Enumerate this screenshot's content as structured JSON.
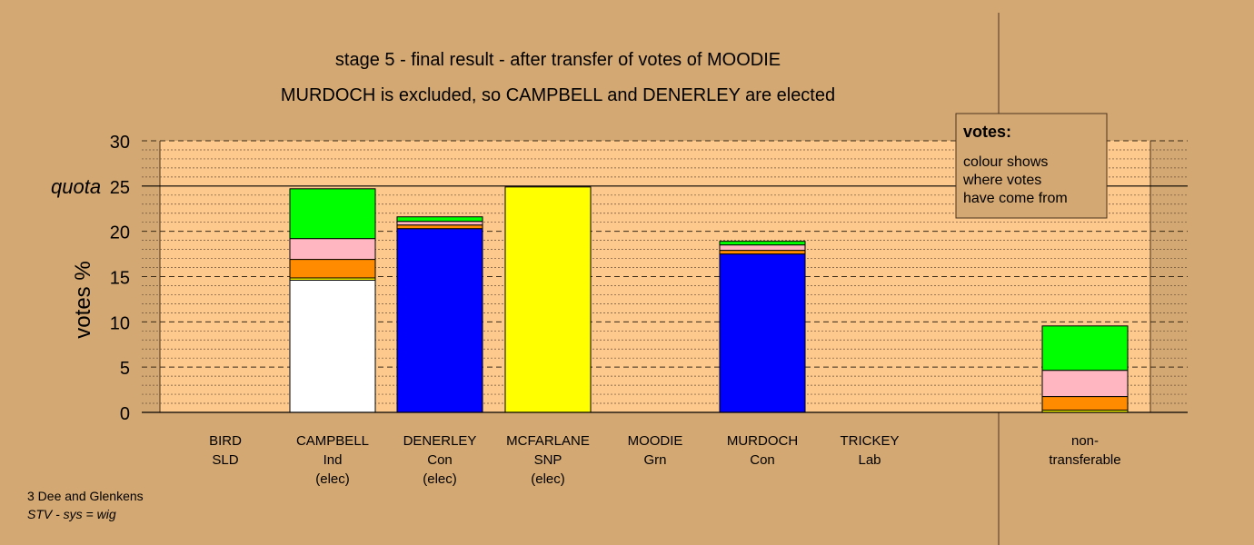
{
  "chart_data": {
    "type": "bar",
    "stacked": true,
    "title": "stage 5 - final result - after transfer of votes of MOODIE",
    "subtitle": "MURDOCH is excluded, so CAMPBELL and DENERLEY are elected",
    "ylabel": "votes %",
    "ylim": [
      0,
      30
    ],
    "yticks": [
      0,
      5,
      10,
      15,
      20,
      25,
      30
    ],
    "quota": {
      "label": "quota",
      "value": 25
    },
    "grid": true,
    "categories": [
      {
        "name": "BIRD",
        "party": "SLD",
        "status": ""
      },
      {
        "name": "CAMPBELL",
        "party": "Ind",
        "status": "(elec)"
      },
      {
        "name": "DENERLEY",
        "party": "Con",
        "status": "(elec)"
      },
      {
        "name": "MCFARLANE",
        "party": "SNP",
        "status": "(elec)"
      },
      {
        "name": "MOODIE",
        "party": "Grn",
        "status": ""
      },
      {
        "name": "MURDOCH",
        "party": "Con",
        "status": ""
      },
      {
        "name": "TRICKEY",
        "party": "Lab",
        "status": ""
      },
      {
        "name": "non-",
        "party": "transferable",
        "status": ""
      }
    ],
    "series": [
      {
        "color": "#ffffff",
        "values": [
          0,
          14.6,
          0,
          0,
          0,
          0,
          0,
          0
        ]
      },
      {
        "color": "#0000ff",
        "values": [
          0,
          0,
          20.3,
          0,
          0,
          17.5,
          0,
          0
        ]
      },
      {
        "color": "#ffff00",
        "values": [
          0,
          0.25,
          0,
          24.9,
          0,
          0,
          0,
          0.25
        ]
      },
      {
        "color": "#ff8c00",
        "values": [
          0,
          2.05,
          0.4,
          0,
          0,
          0.4,
          0,
          1.5
        ]
      },
      {
        "color": "#ffb6c1",
        "values": [
          0,
          2.3,
          0.4,
          0,
          0,
          0.6,
          0,
          2.9
        ]
      },
      {
        "color": "#00ff00",
        "values": [
          0,
          5.5,
          0.5,
          0,
          0,
          0.4,
          0,
          4.9
        ]
      }
    ],
    "legend": {
      "title": "votes:",
      "lines": [
        "colour shows",
        "where votes",
        "have come from"
      ],
      "placement": "top-right"
    }
  },
  "footer": {
    "constituency": "3 Dee and Glenkens",
    "system": "STV - sys = wig"
  }
}
